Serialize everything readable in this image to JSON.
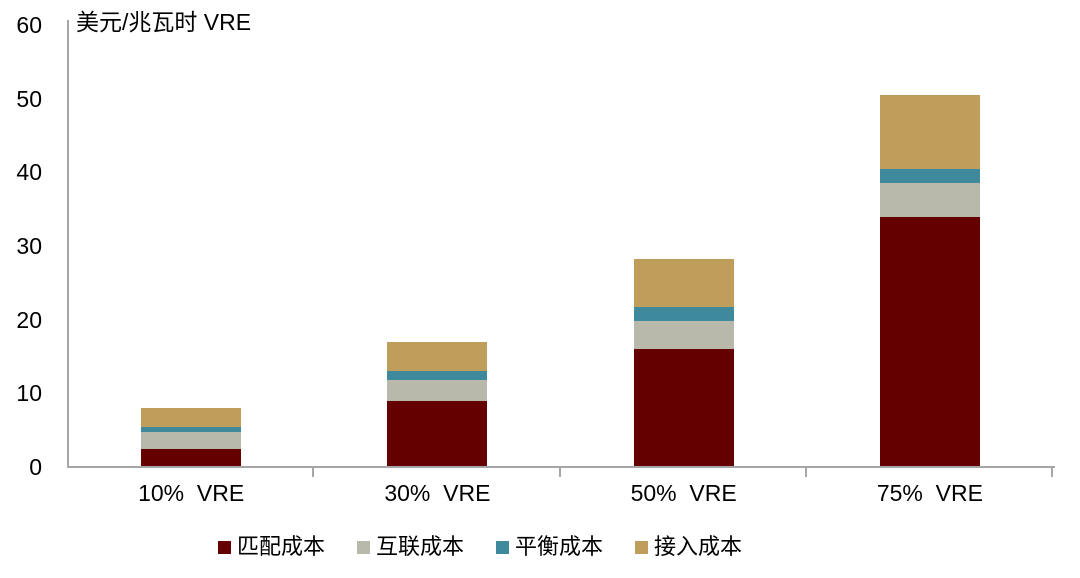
{
  "chart_data": {
    "type": "bar",
    "stacked": true,
    "title": "美元/兆瓦时 VRE",
    "categories": [
      "10%  VRE",
      "30%  VRE",
      "50%  VRE",
      "75%  VRE"
    ],
    "series": [
      {
        "name": "匹配成本",
        "color": "#650000",
        "values": [
          2.5,
          9.0,
          16.0,
          34.0
        ]
      },
      {
        "name": "互联成本",
        "color": "#b8b8ab",
        "values": [
          2.3,
          2.8,
          3.8,
          4.5
        ]
      },
      {
        "name": "平衡成本",
        "color": "#3e8a9c",
        "values": [
          0.6,
          1.2,
          1.9,
          2.0
        ]
      },
      {
        "name": "接入成本",
        "color": "#bf9e5c",
        "values": [
          2.6,
          4.0,
          6.6,
          10.0
        ]
      }
    ],
    "totals": [
      8.0,
      17.0,
      28.3,
      50.5
    ],
    "ylabel": "美元/兆瓦时 VRE",
    "xlabel": "",
    "ylim": [
      0,
      60
    ],
    "yticks": [
      0,
      10,
      20,
      30,
      40,
      50,
      60
    ],
    "grid": false,
    "legend_position": "bottom",
    "axis_color": "#a6a6a6",
    "background_color": "#ffffff"
  }
}
